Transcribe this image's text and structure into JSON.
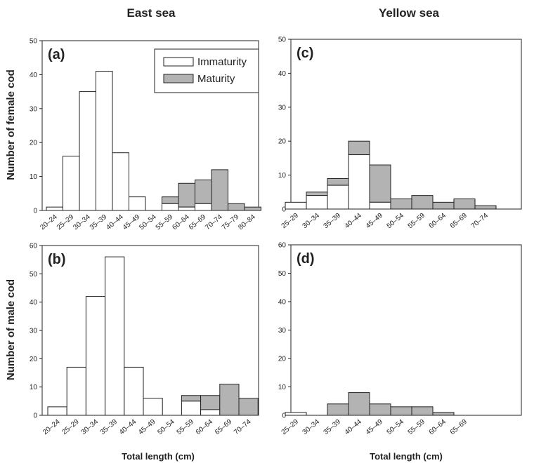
{
  "figure": {
    "col_titles": [
      "East sea",
      "Yellow sea"
    ],
    "ylabels": [
      "Number of female cod",
      "Number of male cod"
    ],
    "xlabel": "Total length (cm)",
    "legend": [
      {
        "label": "Immaturity",
        "color": "#ffffff"
      },
      {
        "label": "Maturity",
        "color": "#b3b3b3"
      }
    ]
  },
  "chart_data": [
    {
      "type": "bar",
      "stacked": true,
      "panel": "(a)",
      "categories": [
        "20–24",
        "25–29",
        "30–34",
        "35–39",
        "40–44",
        "45–49",
        "50–54",
        "55–59",
        "60–64",
        "65–69",
        "70–74",
        "75–79",
        "80–84"
      ],
      "series": [
        {
          "name": "Immaturity",
          "values": [
            1,
            16,
            35,
            41,
            17,
            4,
            0,
            2,
            1,
            2,
            0,
            0,
            0
          ]
        },
        {
          "name": "Maturity",
          "values": [
            0,
            0,
            0,
            0,
            0,
            0,
            0,
            2,
            7,
            7,
            12,
            2,
            1
          ]
        }
      ],
      "ylim": [
        0,
        50
      ],
      "yticks": [
        0,
        10,
        20,
        30,
        40,
        50
      ]
    },
    {
      "type": "bar",
      "stacked": true,
      "panel": "(b)",
      "categories": [
        "20–24",
        "25–29",
        "30–34",
        "35–39",
        "40–44",
        "45–49",
        "50–54",
        "55–59",
        "60–64",
        "65–69",
        "70–74"
      ],
      "series": [
        {
          "name": "Immaturity",
          "values": [
            3,
            17,
            42,
            56,
            17,
            6,
            0,
            5,
            2,
            0,
            0
          ]
        },
        {
          "name": "Maturity",
          "values": [
            0,
            0,
            0,
            0,
            0,
            0,
            0,
            2,
            5,
            11,
            6
          ]
        }
      ],
      "ylim": [
        0,
        60
      ],
      "yticks": [
        0,
        10,
        20,
        30,
        40,
        50,
        60
      ]
    },
    {
      "type": "bar",
      "stacked": true,
      "panel": "(c)",
      "categories": [
        "25–29",
        "30–34",
        "35–39",
        "40–44",
        "45–49",
        "50–54",
        "55–59",
        "60–64",
        "65–69",
        "70–74"
      ],
      "series": [
        {
          "name": "Immaturity",
          "values": [
            2,
            4,
            7,
            16,
            2,
            0,
            0,
            0,
            0,
            0
          ]
        },
        {
          "name": "Maturity",
          "values": [
            0,
            1,
            2,
            4,
            11,
            3,
            4,
            2,
            3,
            1
          ]
        }
      ],
      "ylim": [
        0,
        50
      ],
      "yticks": [
        0,
        10,
        20,
        30,
        40,
        50
      ]
    },
    {
      "type": "bar",
      "stacked": true,
      "panel": "(d)",
      "categories": [
        "25–29",
        "30–34",
        "35–39",
        "40–44",
        "45–49",
        "50–54",
        "55–59",
        "60–64",
        "65–69"
      ],
      "series": [
        {
          "name": "Immaturity",
          "values": [
            1,
            0,
            0,
            0,
            0,
            0,
            0,
            0,
            0
          ]
        },
        {
          "name": "Maturity",
          "values": [
            0,
            0,
            4,
            8,
            4,
            3,
            3,
            1,
            0
          ]
        }
      ],
      "ylim": [
        0,
        60
      ],
      "yticks": [
        0,
        10,
        20,
        30,
        40,
        50,
        60
      ]
    }
  ]
}
